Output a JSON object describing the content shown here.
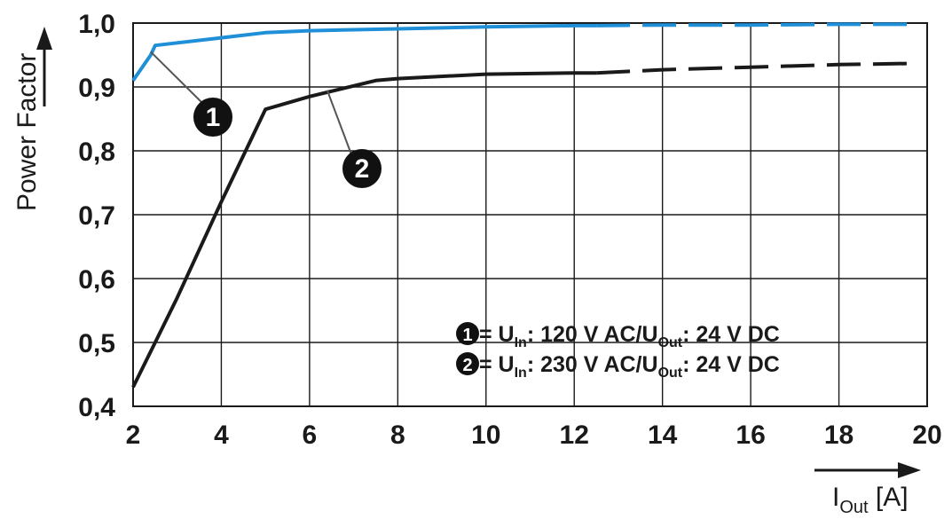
{
  "chart_data": {
    "type": "line",
    "x_unit_label": {
      "main": "I",
      "sub": "Out",
      "unit": " [A]"
    },
    "ylabel": "Power Factor",
    "xlim": [
      2,
      20
    ],
    "ylim": [
      0.4,
      1.0
    ],
    "xticks": [
      "2",
      "4",
      "6",
      "8",
      "10",
      "12",
      "14",
      "16",
      "18",
      "20"
    ],
    "yticks": [
      "0,4",
      "0,5",
      "0,6",
      "0,7",
      "0,8",
      "0,9",
      "1,0"
    ],
    "grid": true,
    "colors": {
      "series1": "#1f8fd8",
      "series2": "#1a1a1a",
      "grid": "#1a1a1a"
    },
    "series": [
      {
        "marker": "1",
        "x": [
          2,
          2.4,
          2.5,
          4,
          5,
          6,
          8,
          10,
          12,
          12.5,
          14,
          16,
          18,
          19.8
        ],
        "values": [
          0.91,
          0.95,
          0.965,
          0.977,
          0.985,
          0.988,
          0.991,
          0.994,
          0.996,
          0.996,
          0.997,
          0.997,
          0.998,
          0.998
        ],
        "dashed_from_x": 12.5
      },
      {
        "marker": "2",
        "x": [
          2,
          2.5,
          3,
          4,
          5,
          6,
          7.5,
          8,
          10,
          12,
          12.5,
          14,
          16,
          18,
          19.8
        ],
        "values": [
          0.43,
          0.5,
          0.57,
          0.72,
          0.865,
          0.885,
          0.91,
          0.913,
          0.92,
          0.922,
          0.922,
          0.927,
          0.931,
          0.935,
          0.937
        ],
        "dashed_from_x": 12.5
      }
    ],
    "legend": [
      {
        "marker": "1",
        "lhs": "U",
        "lhs_sub": "In",
        "mid": ": 120 V AC/U",
        "mid_sub": "Out",
        "rhs": ": 24 V DC"
      },
      {
        "marker": "2",
        "lhs": "U",
        "lhs_sub": "In",
        "mid": ": 230 V AC/U",
        "mid_sub": "Out",
        "rhs": ": 24 V DC"
      }
    ],
    "legend_position": "bottom-right"
  }
}
